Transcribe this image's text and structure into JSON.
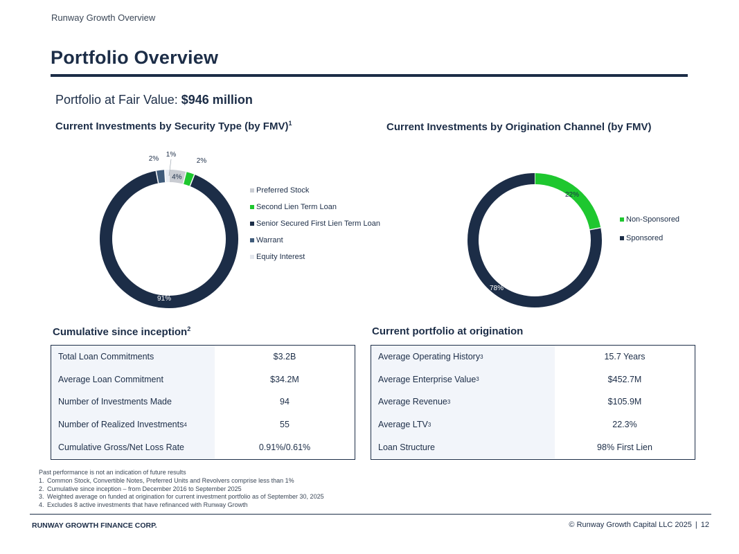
{
  "header": {
    "section": "Runway Growth Overview",
    "title": "Portfolio Overview"
  },
  "fair_value": {
    "label": "Portfolio at Fair Value:",
    "value": "$946 million"
  },
  "colors": {
    "navy": "#1c2d47",
    "green": "#1ec72f",
    "gray": "#c9ccd2",
    "steel": "#3f5b7a",
    "light": "#e9edf3"
  },
  "chart_data": [
    {
      "type": "pie",
      "title": "Current Investments by Security Type (by FMV)",
      "title_sup": "1",
      "labels": [
        "Preferred Stock",
        "Second Lien Term Loan",
        "Senior Secured First Lien Term Loan",
        "Warrant",
        "Equity Interest"
      ],
      "values": [
        4,
        2,
        91,
        2,
        1
      ],
      "data_labels": [
        "4%",
        "2%",
        "91%",
        "2%",
        "1%"
      ],
      "colors": [
        "#c9ccd2",
        "#1ec72f",
        "#1c2d47",
        "#3f5b7a",
        "#e9edf3"
      ],
      "legend_position": "right"
    },
    {
      "type": "pie",
      "title": "Current Investments by Origination Channel (by FMV)",
      "labels": [
        "Non-Sponsored",
        "Sponsored"
      ],
      "values": [
        22,
        78
      ],
      "data_labels": [
        "22%",
        "78%"
      ],
      "colors": [
        "#1ec72f",
        "#1c2d47"
      ],
      "legend_position": "right"
    }
  ],
  "cumulative": {
    "title": "Cumulative since inception",
    "title_sup": "2",
    "rows": [
      {
        "label": "Total Loan Commitments",
        "sup": "",
        "value": "$3.2B"
      },
      {
        "label": "Average Loan Commitment",
        "sup": "",
        "value": "$34.2M"
      },
      {
        "label": "Number of Investments Made",
        "sup": "",
        "value": "94"
      },
      {
        "label": "Number of Realized Investments",
        "sup": "4",
        "value": "55"
      },
      {
        "label": "Cumulative Gross/Net Loss Rate",
        "sup": "",
        "value": "0.91%/0.61%"
      }
    ]
  },
  "origination": {
    "title": "Current portfolio at origination",
    "rows": [
      {
        "label": "Average Operating History",
        "sup": "3",
        "value": "15.7 Years"
      },
      {
        "label": "Average Enterprise Value",
        "sup": "3",
        "value": "$452.7M"
      },
      {
        "label": "Average Revenue",
        "sup": "3",
        "value": "$105.9M"
      },
      {
        "label": "Average LTV",
        "sup": "3",
        "value": "22.3%"
      },
      {
        "label": "Loan Structure",
        "sup": "",
        "value": "98% First Lien"
      }
    ]
  },
  "footnotes": {
    "intro": "Past performance is not an indication of future results",
    "items": [
      {
        "num": "1.",
        "text": "Common Stock, Convertible Notes, Preferred Units and Revolvers comprise less than 1%"
      },
      {
        "num": "2.",
        "text": "Cumulative since inception – from December 2016 to September 2025"
      },
      {
        "num": "3.",
        "text": "Weighted average on funded at origination for current investment portfolio as of September 30, 2025"
      },
      {
        "num": "4.",
        "text": "Excludes 8 active investments that have refinanced with Runway Growth"
      }
    ]
  },
  "footer": {
    "company": "RUNWAY GROWTH FINANCE CORP.",
    "copyright": "© Runway Growth Capital LLC 2025",
    "page": "12"
  }
}
